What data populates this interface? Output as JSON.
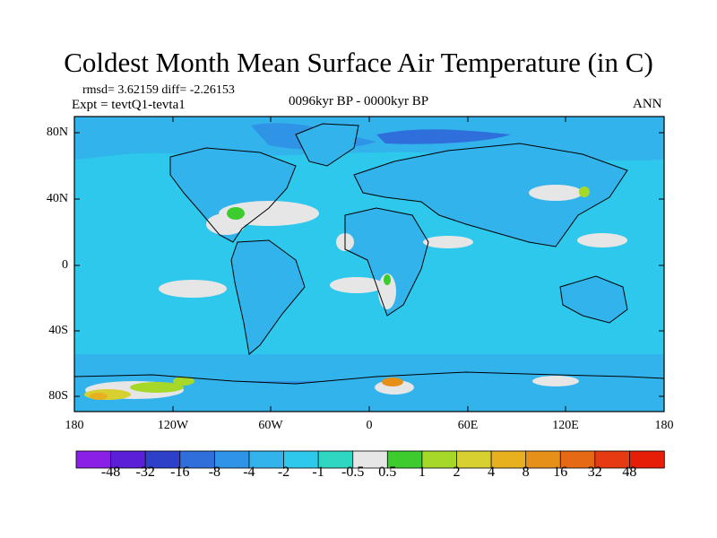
{
  "title": "Coldest Month Mean Surface Air Temperature (in C)",
  "stats": {
    "rmsd_label": "rmsd= 3.62159 diff= -2.26153"
  },
  "experiment": "Expt = tevtQ1-tevta1",
  "period": "0096kyr BP - 0000kyr BP",
  "season": "ANN",
  "y_ticks": [
    "80N",
    "40N",
    "0",
    "40S",
    "80S"
  ],
  "x_ticks": [
    "180",
    "120W",
    "60W",
    "0",
    "60E",
    "120E",
    "180"
  ],
  "colorbar": {
    "labels": [
      "-48",
      "-32",
      "-16",
      "-8",
      "-4",
      "-2",
      "-1",
      "-0.5",
      "0.5",
      "1",
      "2",
      "4",
      "8",
      "16",
      "32",
      "48"
    ],
    "colors": [
      "#8a1fe6",
      "#5a1fd6",
      "#2e3fc8",
      "#2f6fdc",
      "#2f93e6",
      "#33b3ec",
      "#2ec8ec",
      "#2fd6c2",
      "#e6e6e6",
      "#3ccc2e",
      "#a6d82a",
      "#d8d030",
      "#e6b01e",
      "#e6901a",
      "#e66a16",
      "#e63a10",
      "#e61e08"
    ]
  },
  "map": {
    "ocean_color": "#2ec8ec",
    "land_color": "#33b3ec",
    "coastline_color": "#000000"
  }
}
